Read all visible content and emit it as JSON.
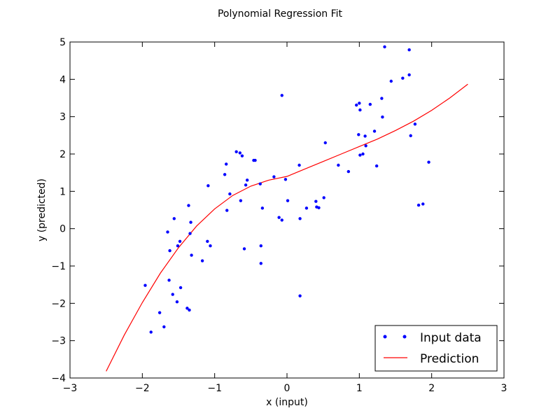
{
  "chart_data": {
    "type": "scatter",
    "title": "Polynomial Regression Fit",
    "xlabel": "x (input)",
    "ylabel": "y (predicted)",
    "xlim": [
      -3,
      3
    ],
    "ylim": [
      -4,
      5
    ],
    "x_ticks": [
      -3,
      -2,
      -1,
      0,
      1,
      2,
      3
    ],
    "x_tick_labels": [
      "−3",
      "−2",
      "−1",
      "0",
      "1",
      "2",
      "3"
    ],
    "y_ticks": [
      -4,
      -3,
      -2,
      -1,
      0,
      1,
      2,
      3,
      4,
      5
    ],
    "y_tick_labels": [
      "−4",
      "−3",
      "−2",
      "−1",
      "0",
      "1",
      "2",
      "3",
      "4",
      "5"
    ],
    "grid": false,
    "legend_position": "lower right",
    "series": [
      {
        "name": "Input data",
        "kind": "scatter",
        "color": "#0000ff",
        "points": [
          [
            -1.96,
            -1.52
          ],
          [
            -1.88,
            -2.77
          ],
          [
            -1.76,
            -2.25
          ],
          [
            -1.7,
            -2.63
          ],
          [
            -1.65,
            -0.09
          ],
          [
            -1.63,
            -1.38
          ],
          [
            -1.62,
            -0.59
          ],
          [
            -1.58,
            -1.76
          ],
          [
            -1.56,
            0.27
          ],
          [
            -1.52,
            -1.96
          ],
          [
            -1.51,
            -0.46
          ],
          [
            -1.48,
            -0.34
          ],
          [
            -1.47,
            -1.58
          ],
          [
            -1.38,
            -2.13
          ],
          [
            -1.36,
            0.62
          ],
          [
            -1.35,
            -2.18
          ],
          [
            -1.34,
            -0.13
          ],
          [
            -1.33,
            0.17
          ],
          [
            -1.32,
            -0.71
          ],
          [
            -1.17,
            -0.86
          ],
          [
            -1.1,
            -0.34
          ],
          [
            -1.09,
            1.15
          ],
          [
            -1.06,
            -0.46
          ],
          [
            -0.86,
            1.45
          ],
          [
            -0.84,
            1.73
          ],
          [
            -0.83,
            0.49
          ],
          [
            -0.79,
            0.93
          ],
          [
            -0.7,
            2.06
          ],
          [
            -0.65,
            2.03
          ],
          [
            -0.64,
            0.75
          ],
          [
            -0.62,
            1.95
          ],
          [
            -0.59,
            -0.54
          ],
          [
            -0.57,
            1.17
          ],
          [
            -0.55,
            1.3
          ],
          [
            -0.46,
            1.83
          ],
          [
            -0.44,
            1.83
          ],
          [
            -0.37,
            1.2
          ],
          [
            -0.36,
            -0.46
          ],
          [
            -0.36,
            -0.93
          ],
          [
            -0.34,
            0.55
          ],
          [
            -0.18,
            1.39
          ],
          [
            -0.11,
            0.3
          ],
          [
            -0.07,
            3.57
          ],
          [
            -0.07,
            0.23
          ],
          [
            -0.02,
            1.32
          ],
          [
            0.01,
            0.75
          ],
          [
            0.17,
            1.7
          ],
          [
            0.18,
            0.27
          ],
          [
            0.18,
            -1.8
          ],
          [
            0.27,
            0.55
          ],
          [
            0.4,
            0.73
          ],
          [
            0.41,
            0.58
          ],
          [
            0.44,
            0.56
          ],
          [
            0.51,
            0.83
          ],
          [
            0.53,
            2.3
          ],
          [
            0.71,
            1.7
          ],
          [
            0.85,
            1.53
          ],
          [
            0.96,
            3.31
          ],
          [
            0.99,
            2.52
          ],
          [
            1.0,
            3.36
          ],
          [
            1.01,
            3.18
          ],
          [
            1.01,
            1.97
          ],
          [
            1.05,
            2.0
          ],
          [
            1.08,
            2.48
          ],
          [
            1.09,
            2.22
          ],
          [
            1.15,
            3.33
          ],
          [
            1.21,
            2.61
          ],
          [
            1.24,
            1.68
          ],
          [
            1.31,
            3.49
          ],
          [
            1.32,
            2.99
          ],
          [
            1.35,
            4.87
          ],
          [
            1.44,
            3.95
          ],
          [
            1.6,
            4.03
          ],
          [
            1.69,
            4.79
          ],
          [
            1.69,
            4.12
          ],
          [
            1.71,
            2.49
          ],
          [
            1.77,
            2.8
          ],
          [
            1.82,
            0.63
          ],
          [
            1.88,
            0.66
          ],
          [
            1.96,
            1.78
          ]
        ]
      },
      {
        "name": "Prediction",
        "kind": "line",
        "color": "#ff0000",
        "points": [
          [
            -2.5,
            -3.82
          ],
          [
            -2.25,
            -2.85
          ],
          [
            -2.0,
            -1.98
          ],
          [
            -1.75,
            -1.19
          ],
          [
            -1.5,
            -0.51
          ],
          [
            -1.25,
            0.07
          ],
          [
            -1.0,
            0.53
          ],
          [
            -0.75,
            0.89
          ],
          [
            -0.5,
            1.14
          ],
          [
            -0.25,
            1.3
          ],
          [
            0.0,
            1.4
          ],
          [
            0.25,
            1.6
          ],
          [
            0.5,
            1.8
          ],
          [
            0.75,
            2.0
          ],
          [
            1.0,
            2.2
          ],
          [
            1.25,
            2.4
          ],
          [
            1.5,
            2.63
          ],
          [
            1.75,
            2.88
          ],
          [
            2.0,
            3.17
          ],
          [
            2.25,
            3.5
          ],
          [
            2.5,
            3.87
          ]
        ]
      }
    ]
  }
}
